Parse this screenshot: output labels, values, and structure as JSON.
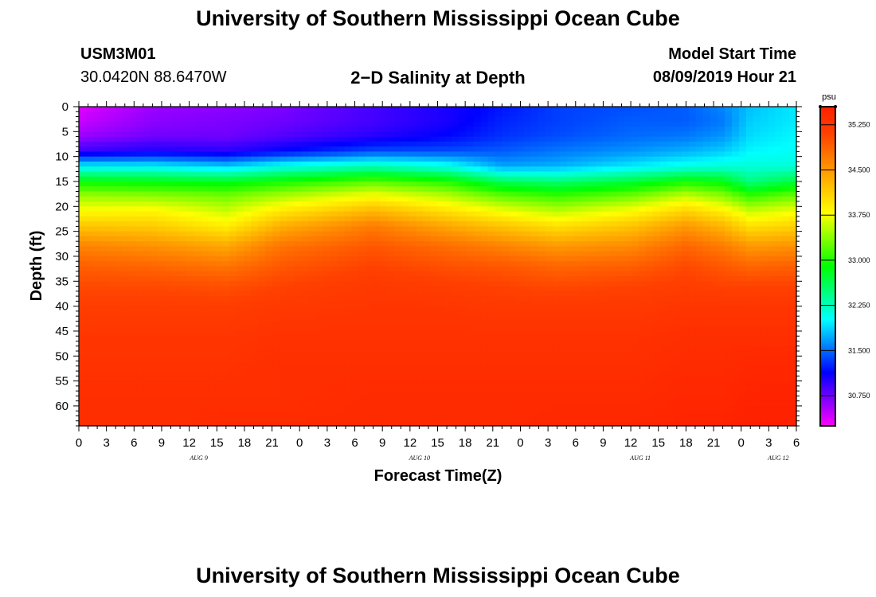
{
  "header": {
    "title": "University of Southern Mississippi Ocean Cube",
    "station_id": "USM3M01",
    "coordinates": "30.0420N 88.6470W",
    "plot_title": "2−D Salinity at Depth",
    "model_start_label": "Model Start Time",
    "model_start_value": "08/09/2019 Hour 21"
  },
  "footer": {
    "title": "University of Southern Mississippi Ocean Cube"
  },
  "chart_data": {
    "type": "heatmap",
    "title": "2−D Salinity at Depth",
    "xlabel": "Forecast Time(Z)",
    "ylabel": "Depth (ft)",
    "x_tick_labels": [
      "0",
      "3",
      "6",
      "9",
      "12",
      "15",
      "18",
      "21",
      "0",
      "3",
      "6",
      "9",
      "12",
      "15",
      "18",
      "21",
      "0",
      "3",
      "6",
      "9",
      "12",
      "15",
      "18",
      "21",
      "0",
      "3",
      "6"
    ],
    "date_labels": [
      {
        "label": "AUG 9",
        "hour_index": 4
      },
      {
        "label": "AUG 10",
        "hour_index": 12
      },
      {
        "label": "AUG 11",
        "hour_index": 20
      },
      {
        "label": "AUG 12",
        "hour_index": 25
      }
    ],
    "forecast_hours_range": [
      0,
      78
    ],
    "y_ticks": [
      0,
      5,
      10,
      15,
      20,
      25,
      30,
      35,
      40,
      45,
      50,
      55,
      60
    ],
    "ylim": [
      0,
      64
    ],
    "colorbar": {
      "unit": "psu",
      "ticks": [
        "30.750",
        "31.500",
        "32.250",
        "33.000",
        "33.750",
        "34.500",
        "35.250"
      ],
      "range": [
        30.25,
        35.55
      ],
      "colors": [
        "#ff00ff",
        "#8000ff",
        "#0000ff",
        "#0080ff",
        "#00ffff",
        "#00ff80",
        "#00ff00",
        "#80ff00",
        "#ffff00",
        "#ffc000",
        "#ff8000",
        "#ff4000",
        "#ff2000"
      ]
    },
    "profile_depths_ft": [
      0,
      3,
      6,
      9,
      12,
      15,
      18,
      21,
      24,
      28,
      32,
      36,
      40,
      46,
      52,
      58,
      64
    ],
    "profile_hours": [
      0,
      8,
      16,
      22,
      32,
      40,
      46,
      52,
      60,
      66,
      70,
      73,
      78
    ],
    "salinity_psu": [
      [
        30.35,
        30.45,
        30.6,
        30.95,
        32.0,
        32.9,
        33.45,
        33.8,
        34.2,
        34.65,
        34.9,
        35.05,
        35.15,
        35.25,
        35.3,
        35.35,
        35.35
      ],
      [
        30.6,
        30.65,
        30.75,
        31.05,
        32.0,
        32.85,
        33.4,
        33.85,
        34.15,
        34.55,
        34.85,
        35.05,
        35.15,
        35.25,
        35.3,
        35.35,
        35.35
      ],
      [
        30.65,
        30.7,
        30.75,
        31.0,
        31.85,
        32.8,
        33.3,
        33.6,
        33.9,
        34.4,
        34.75,
        35.0,
        35.15,
        35.25,
        35.3,
        35.35,
        35.4
      ],
      [
        30.7,
        30.75,
        30.85,
        31.15,
        32.1,
        32.95,
        33.5,
        33.95,
        34.35,
        34.75,
        34.95,
        35.1,
        35.2,
        35.3,
        35.35,
        35.35,
        35.4
      ],
      [
        30.9,
        30.9,
        31.0,
        31.4,
        32.3,
        33.2,
        33.8,
        34.3,
        34.7,
        34.95,
        35.1,
        35.2,
        35.25,
        35.3,
        35.35,
        35.4,
        35.4
      ],
      [
        31.05,
        31.05,
        31.15,
        31.4,
        32.1,
        33.0,
        33.55,
        34.0,
        34.4,
        34.8,
        35.0,
        35.15,
        35.25,
        35.3,
        35.35,
        35.4,
        35.4
      ],
      [
        31.2,
        31.25,
        31.3,
        31.45,
        31.7,
        32.6,
        33.25,
        33.75,
        34.2,
        34.65,
        34.95,
        35.1,
        35.2,
        35.3,
        35.35,
        35.4,
        35.4
      ],
      [
        31.35,
        31.35,
        31.4,
        31.55,
        31.75,
        32.5,
        33.1,
        33.55,
        34.0,
        34.5,
        34.85,
        35.05,
        35.2,
        35.3,
        35.35,
        35.4,
        35.45
      ],
      [
        31.4,
        31.45,
        31.5,
        31.65,
        31.95,
        32.7,
        33.3,
        33.8,
        34.2,
        34.6,
        34.9,
        35.1,
        35.2,
        35.3,
        35.35,
        35.4,
        35.45
      ],
      [
        31.45,
        31.45,
        31.55,
        31.75,
        32.1,
        32.95,
        33.6,
        34.1,
        34.5,
        34.85,
        35.05,
        35.15,
        35.25,
        35.35,
        35.4,
        35.45,
        35.5
      ],
      [
        31.6,
        31.55,
        31.65,
        31.85,
        32.15,
        32.85,
        33.4,
        33.9,
        34.3,
        34.7,
        34.95,
        35.1,
        35.25,
        35.35,
        35.4,
        35.45,
        35.5
      ],
      [
        31.8,
        31.85,
        31.9,
        32.0,
        32.15,
        32.45,
        33.1,
        33.6,
        34.0,
        34.5,
        34.85,
        35.1,
        35.25,
        35.35,
        35.45,
        35.5,
        35.55
      ],
      [
        31.95,
        31.95,
        32.0,
        32.05,
        32.15,
        32.7,
        33.3,
        33.75,
        34.1,
        34.55,
        34.9,
        35.1,
        35.25,
        35.35,
        35.45,
        35.5,
        35.55
      ]
    ]
  }
}
